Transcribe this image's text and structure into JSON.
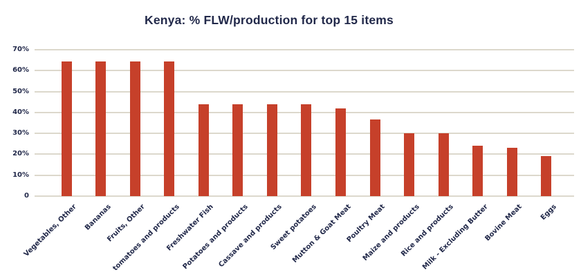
{
  "chart_data": {
    "type": "bar",
    "title": "Kenya: % FLW/production for top 15 items",
    "categories": [
      "Vegetables, Other",
      "Bananas",
      "Fruits, Other",
      "tomatoes and products",
      "Freshwater Fish",
      "Potatoes and products",
      "Cassave and products",
      "Sweet potatoes",
      "Mutton & Goat Meat",
      "Poultry Meat",
      "Maize and products",
      "Rice and products",
      "Milk - Excluding Butter",
      "Bovine Meat",
      "Eggs"
    ],
    "values": [
      64.5,
      64.5,
      64.5,
      64.5,
      44,
      44,
      44,
      44,
      42,
      36.5,
      30,
      30,
      24,
      23,
      19
    ],
    "unit": "%",
    "xlabel": "",
    "ylabel": "",
    "ylim": [
      0,
      70
    ],
    "yticks": [
      {
        "value": 70,
        "label": "70%"
      },
      {
        "value": 60,
        "label": "60%"
      },
      {
        "value": 50,
        "label": "50%"
      },
      {
        "value": 40,
        "label": "40%"
      },
      {
        "value": 30,
        "label": "30%"
      },
      {
        "value": 20,
        "label": "20%"
      },
      {
        "value": 10,
        "label": "10%"
      },
      {
        "value": 0,
        "label": "0"
      }
    ],
    "grid": true,
    "legend": "none",
    "colors": {
      "bar": "#c6402a",
      "gridline": "#dcd8cc",
      "text": "#22294a",
      "background": "#ffffff"
    }
  }
}
